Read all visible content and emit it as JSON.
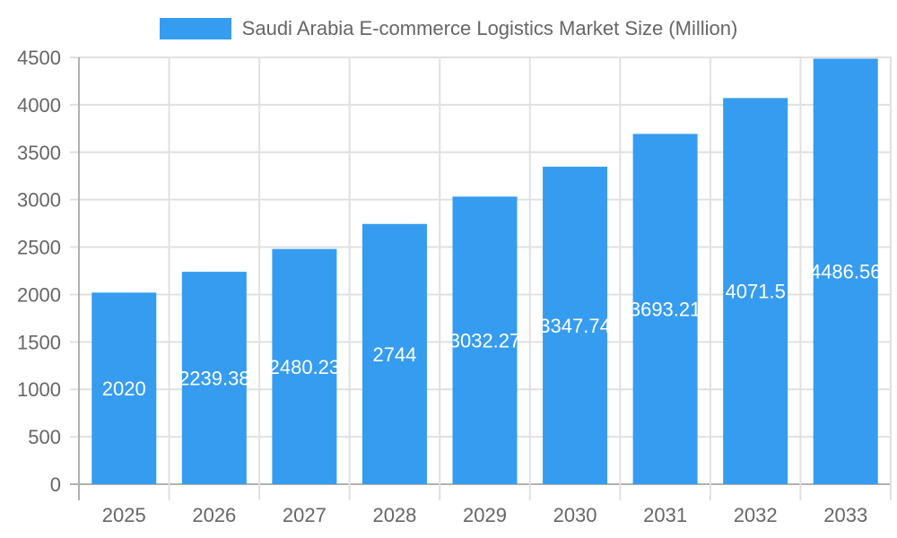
{
  "colors": {
    "bar": "#369cf0",
    "grid": "#e0e0e0",
    "axis": "#b0b0b0",
    "tick_text": "#666666",
    "label_text": "#ffffff"
  },
  "legend": {
    "label": "Saudi Arabia E-commerce Logistics Market Size (Million)"
  },
  "chart_data": {
    "type": "bar",
    "title": "",
    "xlabel": "",
    "ylabel": "",
    "categories": [
      "2025",
      "2026",
      "2027",
      "2028",
      "2029",
      "2030",
      "2031",
      "2032",
      "2033"
    ],
    "series": [
      {
        "name": "Saudi Arabia E-commerce Logistics Market Size (Million)",
        "values": [
          2020,
          2239.38,
          2480.23,
          2744,
          3032.27,
          3347.74,
          3693.21,
          4071.5,
          4486.56
        ]
      }
    ],
    "data_labels": [
      "2020",
      "2239.38",
      "2480.23",
      "2744",
      "3032.27",
      "3347.74",
      "3693.21",
      "4071.5",
      "4486.56"
    ],
    "ylim": [
      0,
      4500
    ],
    "yticks": [
      0,
      500,
      1000,
      1500,
      2000,
      2500,
      3000,
      3500,
      4000,
      4500
    ],
    "grid": true,
    "legend_position": "top"
  }
}
